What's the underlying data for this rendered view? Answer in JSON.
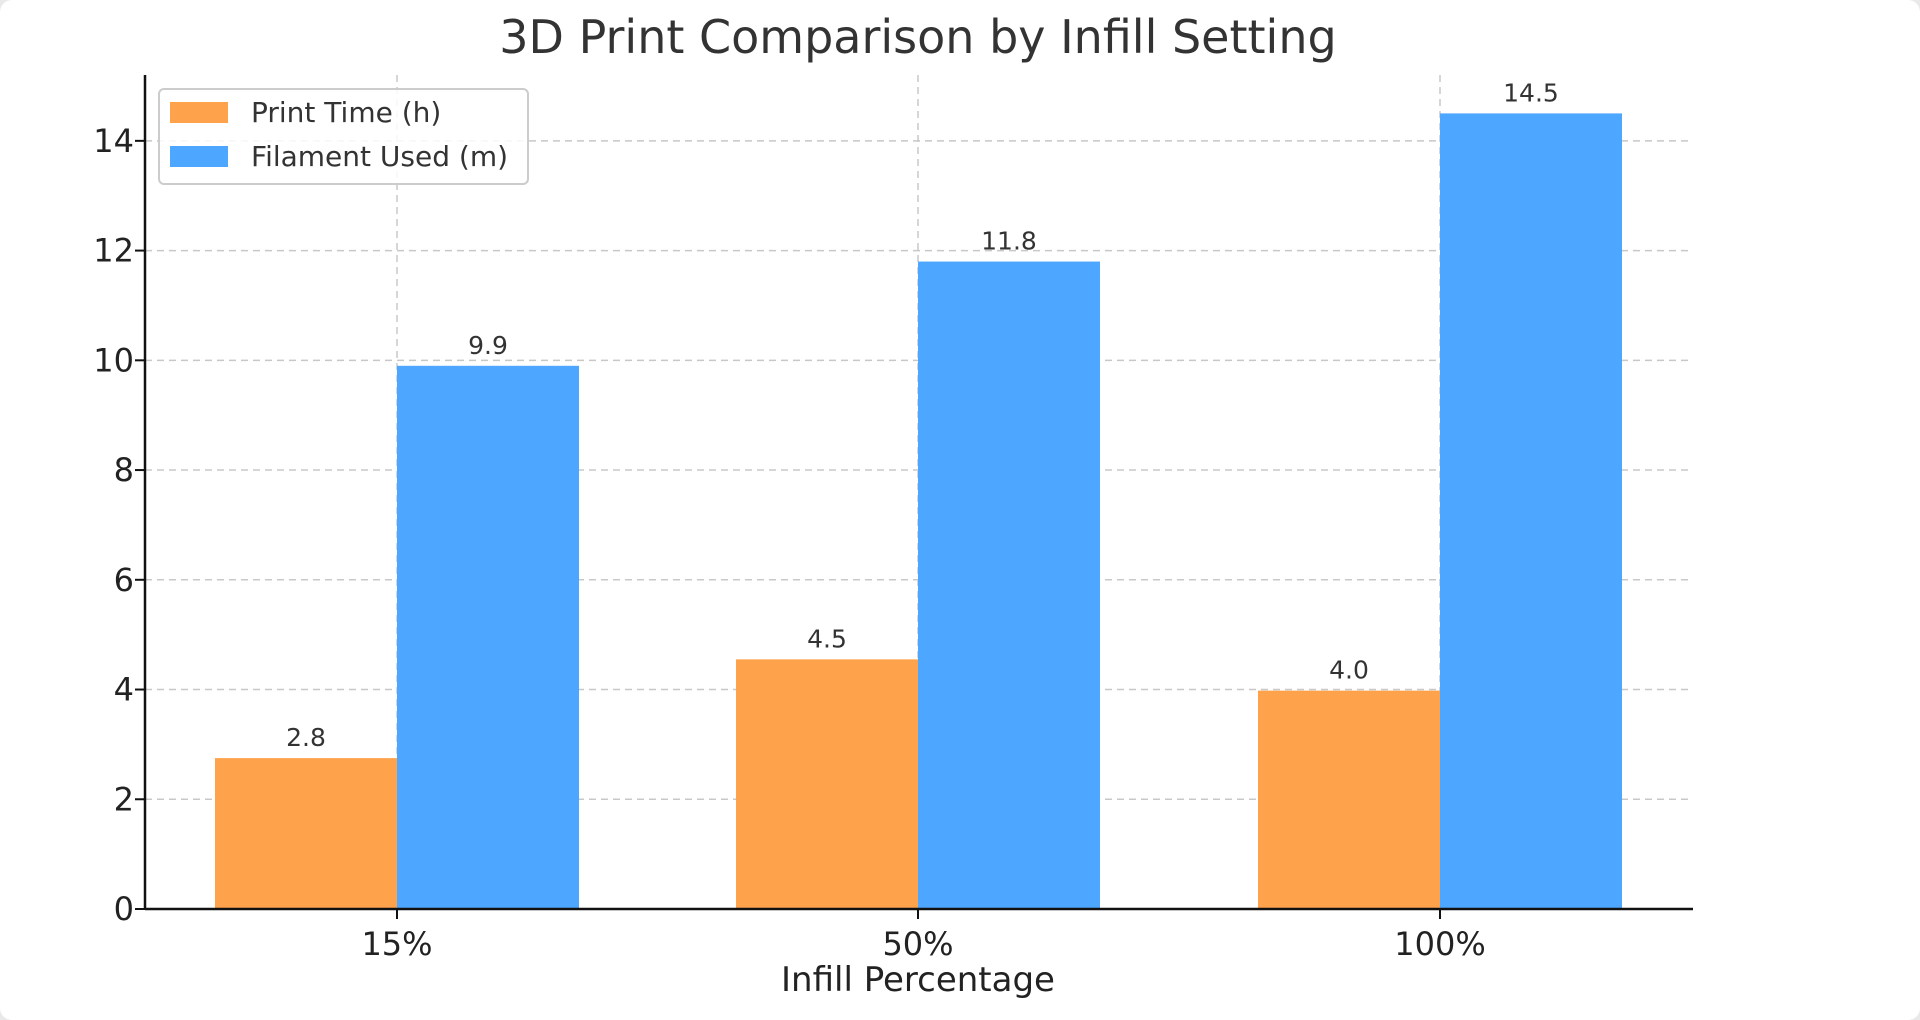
{
  "chart_data": {
    "type": "bar",
    "title": "3D Print Comparison by Infill Setting",
    "xlabel": "Infill Percentage",
    "ylabel": "",
    "categories": [
      "15%",
      "50%",
      "100%"
    ],
    "series": [
      {
        "name": "Print Time (h)",
        "values": [
          2.75,
          4.55,
          3.98
        ],
        "labels": [
          "2.8",
          "4.5",
          "4.0"
        ],
        "color": "#FFA24C"
      },
      {
        "name": "Filament Used (m)",
        "values": [
          9.9,
          11.8,
          14.5
        ],
        "labels": [
          "9.9",
          "11.8",
          "14.5"
        ],
        "color": "#4DA6FF"
      }
    ],
    "ylim": [
      0,
      15.2
    ],
    "yticks": [
      "0",
      "2",
      "4",
      "6",
      "8",
      "10",
      "12",
      "14"
    ],
    "grid": true,
    "grid_style": "dashed",
    "legend_position": "upper-left"
  }
}
